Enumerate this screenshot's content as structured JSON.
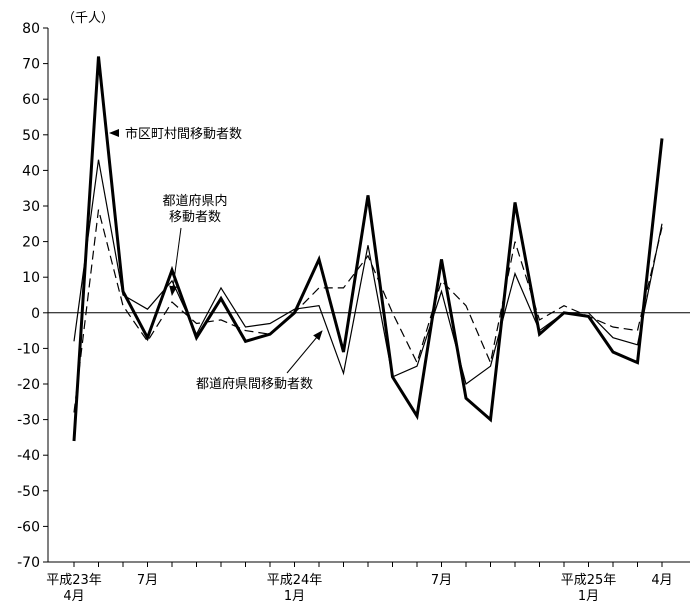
{
  "chart_data": {
    "type": "line",
    "unit_label": "（千人）",
    "ylim": [
      -70,
      80
    ],
    "y_ticks": [
      80,
      70,
      60,
      50,
      40,
      30,
      20,
      10,
      0,
      -10,
      -20,
      -30,
      -40,
      -50,
      -60,
      -70
    ],
    "x_tick_labels": [
      {
        "index": 0,
        "lines": [
          "平成23年",
          "4月"
        ]
      },
      {
        "index": 3,
        "lines": [
          "7月"
        ]
      },
      {
        "index": 9,
        "lines": [
          "平成24年",
          "1月"
        ]
      },
      {
        "index": 15,
        "lines": [
          "7月"
        ]
      },
      {
        "index": 21,
        "lines": [
          "平成25年",
          "1月"
        ]
      },
      {
        "index": 24,
        "lines": [
          "4月"
        ]
      }
    ],
    "series": [
      {
        "name": "市区町村間移動者数",
        "style": "thick",
        "values": [
          -36,
          72,
          6,
          -7,
          12,
          -7,
          4,
          -8,
          -6,
          0,
          15,
          -11,
          33,
          -18,
          -29,
          15,
          -24,
          -30,
          31,
          -6,
          0,
          -1,
          -11,
          -14,
          49
        ]
      },
      {
        "name": "都道府県内移動者数",
        "style": "thin",
        "values": [
          -8,
          43,
          5,
          1,
          9,
          -6,
          7,
          -4,
          -3,
          1,
          2,
          -17,
          19,
          -18,
          -15,
          6,
          -20,
          -15,
          11,
          -5,
          0,
          0,
          -7,
          -9,
          25
        ]
      },
      {
        "name": "都道府県間移動者数",
        "style": "dashed",
        "values": [
          -28,
          29,
          2,
          -8,
          3,
          -3,
          -2,
          -5,
          -6,
          0,
          7,
          7,
          16,
          0,
          -14,
          9,
          2,
          -14,
          20,
          -2,
          2,
          -1,
          -4,
          -5,
          24
        ]
      }
    ],
    "annotations": [
      {
        "series_index": 0,
        "lines": [
          "市区町村間移動者数"
        ]
      },
      {
        "series_index": 1,
        "lines": [
          "都道府県内",
          "移動者数"
        ]
      },
      {
        "series_index": 2,
        "lines": [
          "都道府県間移動者数"
        ]
      }
    ],
    "grid": false,
    "legend": "none"
  }
}
